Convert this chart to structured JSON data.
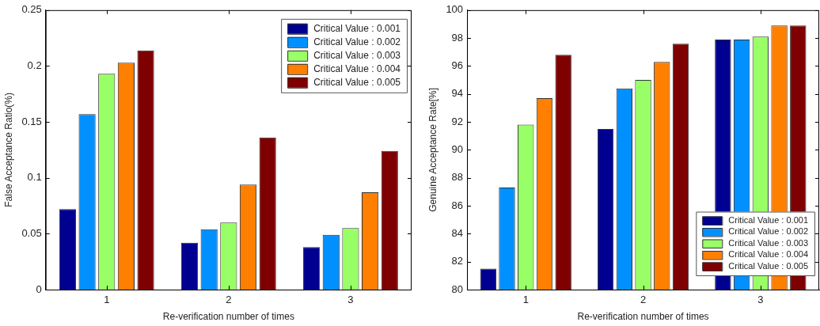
{
  "chart_data": [
    {
      "type": "bar",
      "xlabel": "Re-verification number of times",
      "ylabel": "False Acceptance Ratio(%)",
      "categories": [
        "1",
        "2",
        "3"
      ],
      "series": [
        {
          "name": "Critical Value : 0.001",
          "color": "#000090",
          "values": [
            0.072,
            0.042,
            0.038
          ]
        },
        {
          "name": "Critical Value : 0.002",
          "color": "#0090ff",
          "values": [
            0.157,
            0.054,
            0.049
          ]
        },
        {
          "name": "Critical Value : 0.003",
          "color": "#99ff66",
          "values": [
            0.193,
            0.06,
            0.055
          ]
        },
        {
          "name": "Critical Value : 0.004",
          "color": "#ff7f00",
          "values": [
            0.203,
            0.094,
            0.087
          ]
        },
        {
          "name": "Critical Value : 0.005",
          "color": "#7f0000",
          "values": [
            0.214,
            0.136,
            0.124
          ]
        }
      ],
      "ylim": [
        0,
        0.25
      ],
      "yticks": [
        0,
        0.05,
        0.1,
        0.15,
        0.2,
        0.25
      ],
      "grid": false,
      "legend": "top right"
    },
    {
      "type": "bar",
      "xlabel": "Re-verification number of times",
      "ylabel": "Genuine Acceptance Rate[%]",
      "categories": [
        "1",
        "2",
        "3"
      ],
      "series": [
        {
          "name": "Critical Value : 0.001",
          "color": "#000090",
          "values": [
            81.5,
            91.5,
            97.9
          ]
        },
        {
          "name": "Critical Value : 0.002",
          "color": "#0090ff",
          "values": [
            87.3,
            94.4,
            97.9
          ]
        },
        {
          "name": "Critical Value : 0.003",
          "color": "#99ff66",
          "values": [
            91.8,
            95.0,
            98.1
          ]
        },
        {
          "name": "Critical Value : 0.004",
          "color": "#ff7f00",
          "values": [
            93.7,
            96.3,
            98.9
          ]
        },
        {
          "name": "Critical Value : 0.005",
          "color": "#7f0000",
          "values": [
            96.8,
            97.6,
            98.9
          ]
        }
      ],
      "ylim": [
        80,
        100
      ],
      "yticks": [
        80,
        82,
        84,
        86,
        88,
        90,
        92,
        94,
        96,
        98,
        100
      ],
      "grid": false,
      "legend": "bottom right"
    }
  ]
}
